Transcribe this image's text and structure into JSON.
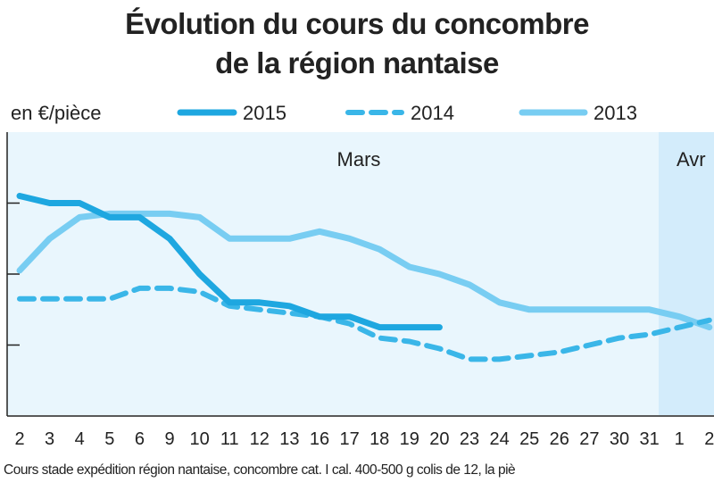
{
  "chart_data": {
    "type": "line",
    "title_line1": "Évolution du cours du concombre",
    "title_line2": "de la région nantaise",
    "ylabel": "en €/pièce",
    "xlabel": "",
    "ylim": [
      0,
      4
    ],
    "y_gridlines": [
      1,
      2,
      3
    ],
    "grid": false,
    "legend_position": "top",
    "period_labels": [
      "Mars",
      "Avr"
    ],
    "shaded_period": "Avr",
    "categories": [
      "2",
      "3",
      "4",
      "5",
      "6",
      "9",
      "10",
      "11",
      "12",
      "13",
      "16",
      "17",
      "18",
      "19",
      "20",
      "23",
      "24",
      "25",
      "26",
      "27",
      "30",
      "31",
      "1",
      "2"
    ],
    "series": [
      {
        "name": "2015",
        "style": "solid-thick",
        "color": "#1ea7e0",
        "values": [
          3.1,
          3.0,
          3.0,
          2.8,
          2.8,
          2.5,
          2.0,
          1.6,
          1.6,
          1.55,
          1.4,
          1.4,
          1.25,
          1.25,
          1.25,
          null,
          null,
          null,
          null,
          null,
          null,
          null,
          null,
          null
        ]
      },
      {
        "name": "2014",
        "style": "dashed",
        "color": "#3ab6e8",
        "values": [
          1.65,
          1.65,
          1.65,
          1.65,
          1.8,
          1.8,
          1.75,
          1.55,
          1.5,
          1.45,
          1.4,
          1.3,
          1.1,
          1.05,
          0.95,
          0.8,
          0.8,
          0.85,
          0.9,
          1.0,
          1.1,
          1.15,
          1.25,
          1.35
        ]
      },
      {
        "name": "2013",
        "style": "solid-light",
        "color": "#78cdf2",
        "values": [
          2.05,
          2.5,
          2.8,
          2.85,
          2.85,
          2.85,
          2.8,
          2.5,
          2.5,
          2.5,
          2.6,
          2.5,
          2.35,
          2.1,
          2.0,
          1.85,
          1.6,
          1.5,
          1.5,
          1.5,
          1.5,
          1.5,
          1.4,
          1.25
        ]
      }
    ],
    "footnote": "Cours stade expédition région nantaise, concombre cat. I cal. 400-500 g colis de 12, la piè"
  }
}
